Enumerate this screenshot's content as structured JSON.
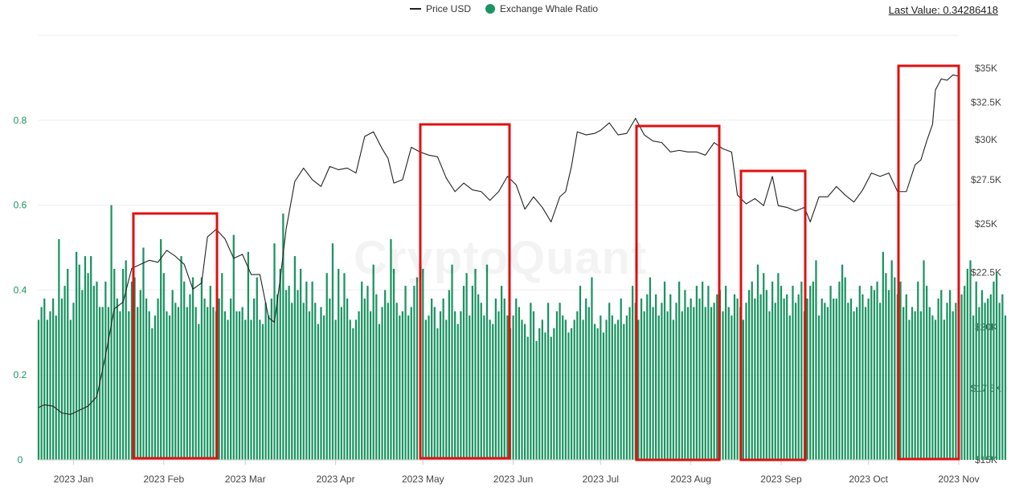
{
  "legend": {
    "price_label": "Price USD",
    "ratio_label": "Exchange Whale Ratio"
  },
  "last_value": {
    "text": "Last Value: 0.34286418"
  },
  "watermark": {
    "text": "CryptoQuant"
  },
  "colors": {
    "bar": "#1a9461",
    "price_line": "#222222",
    "left_axis_text": "#1a9461",
    "right_axis_text": "#444444",
    "gridline": "#eeeeee",
    "highlight_box": "#e01010"
  },
  "chart_data": {
    "type": "bar",
    "title": "",
    "left_axis": {
      "ticks": [
        0,
        0.2,
        0.4,
        0.6,
        0.8
      ],
      "tick_labels": [
        "0",
        "0.2",
        "0.4",
        "0.6",
        "0.8"
      ],
      "range": [
        0,
        1.0
      ]
    },
    "right_axis": {
      "scale": "log",
      "ticks": [
        15000,
        17500,
        20000,
        22500,
        25000,
        27500,
        30000,
        32500,
        35000
      ],
      "tick_labels": [
        "$15K",
        "$17.5K",
        "$20K",
        "$22.5K",
        "$25K",
        "$27.5K",
        "$30K",
        "$32.5K",
        "$35K"
      ],
      "range": [
        15000,
        35000
      ]
    },
    "x_axis": {
      "start": "2022-12-20",
      "end": "2023-11-01",
      "ticks": [
        "2023-01-01",
        "2023-02-01",
        "2023-03-01",
        "2023-04-01",
        "2023-05-01",
        "2023-06-01",
        "2023-07-01",
        "2023-08-01",
        "2023-09-01",
        "2023-10-01",
        "2023-11-01"
      ],
      "tick_labels": [
        "2023 Jan",
        "2023 Feb",
        "2023 Mar",
        "2023 Apr",
        "2023 May",
        "2023 Jun",
        "2023 Jul",
        "2023 Aug",
        "2023 Sep",
        "2023 Oct",
        "2023 Nov"
      ]
    },
    "series": [
      {
        "name": "Price USD",
        "kind": "line",
        "axis": "right",
        "points": [
          [
            "2022-12-20",
            16800
          ],
          [
            "2022-12-22",
            16900
          ],
          [
            "2022-12-25",
            16850
          ],
          [
            "2022-12-28",
            16600
          ],
          [
            "2022-12-31",
            16550
          ],
          [
            "2023-01-03",
            16700
          ],
          [
            "2023-01-06",
            16850
          ],
          [
            "2023-01-09",
            17200
          ],
          [
            "2023-01-12",
            18800
          ],
          [
            "2023-01-15",
            20800
          ],
          [
            "2023-01-18",
            21100
          ],
          [
            "2023-01-21",
            22700
          ],
          [
            "2023-01-24",
            22900
          ],
          [
            "2023-01-27",
            23100
          ],
          [
            "2023-01-30",
            23000
          ],
          [
            "2023-02-02",
            23600
          ],
          [
            "2023-02-05",
            23300
          ],
          [
            "2023-02-08",
            22900
          ],
          [
            "2023-02-11",
            21700
          ],
          [
            "2023-02-14",
            22000
          ],
          [
            "2023-02-16",
            24300
          ],
          [
            "2023-02-19",
            24700
          ],
          [
            "2023-02-22",
            24200
          ],
          [
            "2023-02-25",
            23200
          ],
          [
            "2023-02-28",
            23400
          ],
          [
            "2023-03-03",
            22400
          ],
          [
            "2023-03-06",
            22400
          ],
          [
            "2023-03-09",
            20400
          ],
          [
            "2023-03-11",
            20200
          ],
          [
            "2023-03-13",
            22200
          ],
          [
            "2023-03-15",
            24700
          ],
          [
            "2023-03-18",
            27400
          ],
          [
            "2023-03-21",
            28200
          ],
          [
            "2023-03-24",
            27500
          ],
          [
            "2023-03-27",
            27100
          ],
          [
            "2023-03-30",
            28300
          ],
          [
            "2023-04-02",
            28100
          ],
          [
            "2023-04-05",
            28200
          ],
          [
            "2023-04-08",
            27900
          ],
          [
            "2023-04-11",
            30200
          ],
          [
            "2023-04-14",
            30500
          ],
          [
            "2023-04-17",
            29400
          ],
          [
            "2023-04-19",
            28800
          ],
          [
            "2023-04-21",
            27300
          ],
          [
            "2023-04-24",
            27500
          ],
          [
            "2023-04-27",
            29500
          ],
          [
            "2023-04-30",
            29200
          ],
          [
            "2023-05-03",
            29000
          ],
          [
            "2023-05-06",
            28900
          ],
          [
            "2023-05-09",
            27600
          ],
          [
            "2023-05-12",
            26800
          ],
          [
            "2023-05-15",
            27300
          ],
          [
            "2023-05-18",
            26900
          ],
          [
            "2023-05-21",
            26800
          ],
          [
            "2023-05-24",
            26300
          ],
          [
            "2023-05-27",
            26800
          ],
          [
            "2023-05-30",
            27700
          ],
          [
            "2023-06-02",
            27200
          ],
          [
            "2023-06-05",
            25800
          ],
          [
            "2023-06-08",
            26500
          ],
          [
            "2023-06-11",
            25900
          ],
          [
            "2023-06-14",
            25100
          ],
          [
            "2023-06-17",
            26500
          ],
          [
            "2023-06-19",
            26800
          ],
          [
            "2023-06-21",
            28300
          ],
          [
            "2023-06-23",
            30500
          ],
          [
            "2023-06-26",
            30300
          ],
          [
            "2023-06-29",
            30400
          ],
          [
            "2023-07-01",
            30600
          ],
          [
            "2023-07-04",
            31100
          ],
          [
            "2023-07-07",
            30300
          ],
          [
            "2023-07-10",
            30400
          ],
          [
            "2023-07-13",
            31400
          ],
          [
            "2023-07-16",
            30300
          ],
          [
            "2023-07-19",
            29900
          ],
          [
            "2023-07-22",
            29800
          ],
          [
            "2023-07-25",
            29200
          ],
          [
            "2023-07-28",
            29300
          ],
          [
            "2023-07-31",
            29200
          ],
          [
            "2023-08-03",
            29200
          ],
          [
            "2023-08-06",
            29000
          ],
          [
            "2023-08-09",
            29800
          ],
          [
            "2023-08-12",
            29400
          ],
          [
            "2023-08-15",
            29200
          ],
          [
            "2023-08-17",
            26600
          ],
          [
            "2023-08-20",
            26100
          ],
          [
            "2023-08-23",
            26400
          ],
          [
            "2023-08-26",
            26000
          ],
          [
            "2023-08-29",
            27700
          ],
          [
            "2023-08-31",
            26000
          ],
          [
            "2023-09-03",
            25900
          ],
          [
            "2023-09-06",
            25700
          ],
          [
            "2023-09-09",
            25900
          ],
          [
            "2023-09-11",
            25100
          ],
          [
            "2023-09-14",
            26500
          ],
          [
            "2023-09-17",
            26500
          ],
          [
            "2023-09-20",
            27100
          ],
          [
            "2023-09-23",
            26600
          ],
          [
            "2023-09-26",
            26200
          ],
          [
            "2023-09-29",
            26900
          ],
          [
            "2023-10-02",
            27900
          ],
          [
            "2023-10-05",
            27700
          ],
          [
            "2023-10-08",
            27900
          ],
          [
            "2023-10-11",
            26800
          ],
          [
            "2023-10-14",
            26800
          ],
          [
            "2023-10-17",
            28400
          ],
          [
            "2023-10-19",
            28700
          ],
          [
            "2023-10-21",
            29900
          ],
          [
            "2023-10-23",
            31000
          ],
          [
            "2023-10-24",
            33400
          ],
          [
            "2023-10-26",
            34200
          ],
          [
            "2023-10-28",
            34100
          ],
          [
            "2023-10-30",
            34500
          ],
          [
            "2023-11-01",
            34400
          ]
        ]
      },
      {
        "name": "Exchange Whale Ratio",
        "kind": "bar",
        "axis": "left",
        "x_start": "2022-12-20",
        "step_days": 1,
        "values": [
          0.33,
          0.36,
          0.38,
          0.33,
          0.35,
          0.38,
          0.34,
          0.52,
          0.38,
          0.41,
          0.45,
          0.33,
          0.37,
          0.49,
          0.46,
          0.4,
          0.48,
          0.44,
          0.48,
          0.41,
          0.42,
          0.36,
          0.36,
          0.42,
          0.36,
          0.6,
          0.45,
          0.38,
          0.35,
          0.45,
          0.47,
          0.35,
          0.42,
          0.43,
          0.36,
          0.4,
          0.5,
          0.38,
          0.35,
          0.31,
          0.34,
          0.38,
          0.52,
          0.44,
          0.35,
          0.34,
          0.4,
          0.37,
          0.36,
          0.48,
          0.42,
          0.36,
          0.39,
          0.43,
          0.36,
          0.32,
          0.43,
          0.38,
          0.36,
          0.41,
          0.36,
          0.35,
          0.38,
          0.44,
          0.35,
          0.33,
          0.38,
          0.53,
          0.35,
          0.35,
          0.36,
          0.33,
          0.49,
          0.33,
          0.38,
          0.43,
          0.33,
          0.32,
          0.37,
          0.34,
          0.38,
          0.51,
          0.39,
          0.45,
          0.58,
          0.4,
          0.41,
          0.37,
          0.48,
          0.4,
          0.45,
          0.37,
          0.42,
          0.35,
          0.42,
          0.37,
          0.32,
          0.36,
          0.34,
          0.44,
          0.38,
          0.51,
          0.33,
          0.45,
          0.36,
          0.44,
          0.38,
          0.33,
          0.31,
          0.33,
          0.35,
          0.42,
          0.38,
          0.41,
          0.35,
          0.46,
          0.39,
          0.32,
          0.36,
          0.4,
          0.37,
          0.52,
          0.45,
          0.37,
          0.34,
          0.35,
          0.41,
          0.34,
          0.36,
          0.41,
          0.43,
          0.38,
          0.45,
          0.33,
          0.34,
          0.38,
          0.36,
          0.31,
          0.35,
          0.38,
          0.33,
          0.4,
          0.46,
          0.35,
          0.32,
          0.35,
          0.41,
          0.44,
          0.34,
          0.41,
          0.45,
          0.39,
          0.37,
          0.34,
          0.46,
          0.33,
          0.32,
          0.38,
          0.35,
          0.41,
          0.38,
          0.34,
          0.31,
          0.34,
          0.38,
          0.36,
          0.33,
          0.32,
          0.29,
          0.37,
          0.35,
          0.28,
          0.31,
          0.33,
          0.3,
          0.37,
          0.29,
          0.31,
          0.35,
          0.37,
          0.34,
          0.33,
          0.3,
          0.31,
          0.33,
          0.35,
          0.41,
          0.33,
          0.38,
          0.36,
          0.43,
          0.32,
          0.31,
          0.34,
          0.3,
          0.33,
          0.37,
          0.34,
          0.32,
          0.33,
          0.38,
          0.32,
          0.34,
          0.36,
          0.41,
          0.37,
          0.33,
          0.38,
          0.35,
          0.39,
          0.43,
          0.36,
          0.39,
          0.34,
          0.37,
          0.42,
          0.35,
          0.39,
          0.33,
          0.37,
          0.42,
          0.35,
          0.4,
          0.36,
          0.38,
          0.36,
          0.41,
          0.38,
          0.42,
          0.36,
          0.41,
          0.36,
          0.37,
          0.39,
          0.4,
          0.35,
          0.41,
          0.36,
          0.34,
          0.39,
          0.38,
          0.36,
          0.33,
          0.37,
          0.4,
          0.42,
          0.38,
          0.46,
          0.39,
          0.44,
          0.4,
          0.35,
          0.42,
          0.37,
          0.44,
          0.41,
          0.38,
          0.39,
          0.34,
          0.41,
          0.37,
          0.39,
          0.42,
          0.35,
          0.38,
          0.41,
          0.42,
          0.47,
          0.34,
          0.38,
          0.37,
          0.36,
          0.41,
          0.38,
          0.38,
          0.42,
          0.46,
          0.43,
          0.37,
          0.38,
          0.35,
          0.36,
          0.41,
          0.39,
          0.36,
          0.38,
          0.41,
          0.4,
          0.42,
          0.37,
          0.49,
          0.44,
          0.4,
          0.47,
          0.43,
          0.39,
          0.42,
          0.36,
          0.39,
          0.33,
          0.36,
          0.35,
          0.42,
          0.35,
          0.47,
          0.41,
          0.36,
          0.34,
          0.33,
          0.38,
          0.4,
          0.33,
          0.37,
          0.4,
          0.35,
          0.37,
          0.34,
          0.39,
          0.41,
          0.45,
          0.47,
          0.34,
          0.42,
          0.36,
          0.4,
          0.37,
          0.38,
          0.39,
          0.42,
          0.44,
          0.37,
          0.39,
          0.34
        ]
      }
    ]
  }
}
